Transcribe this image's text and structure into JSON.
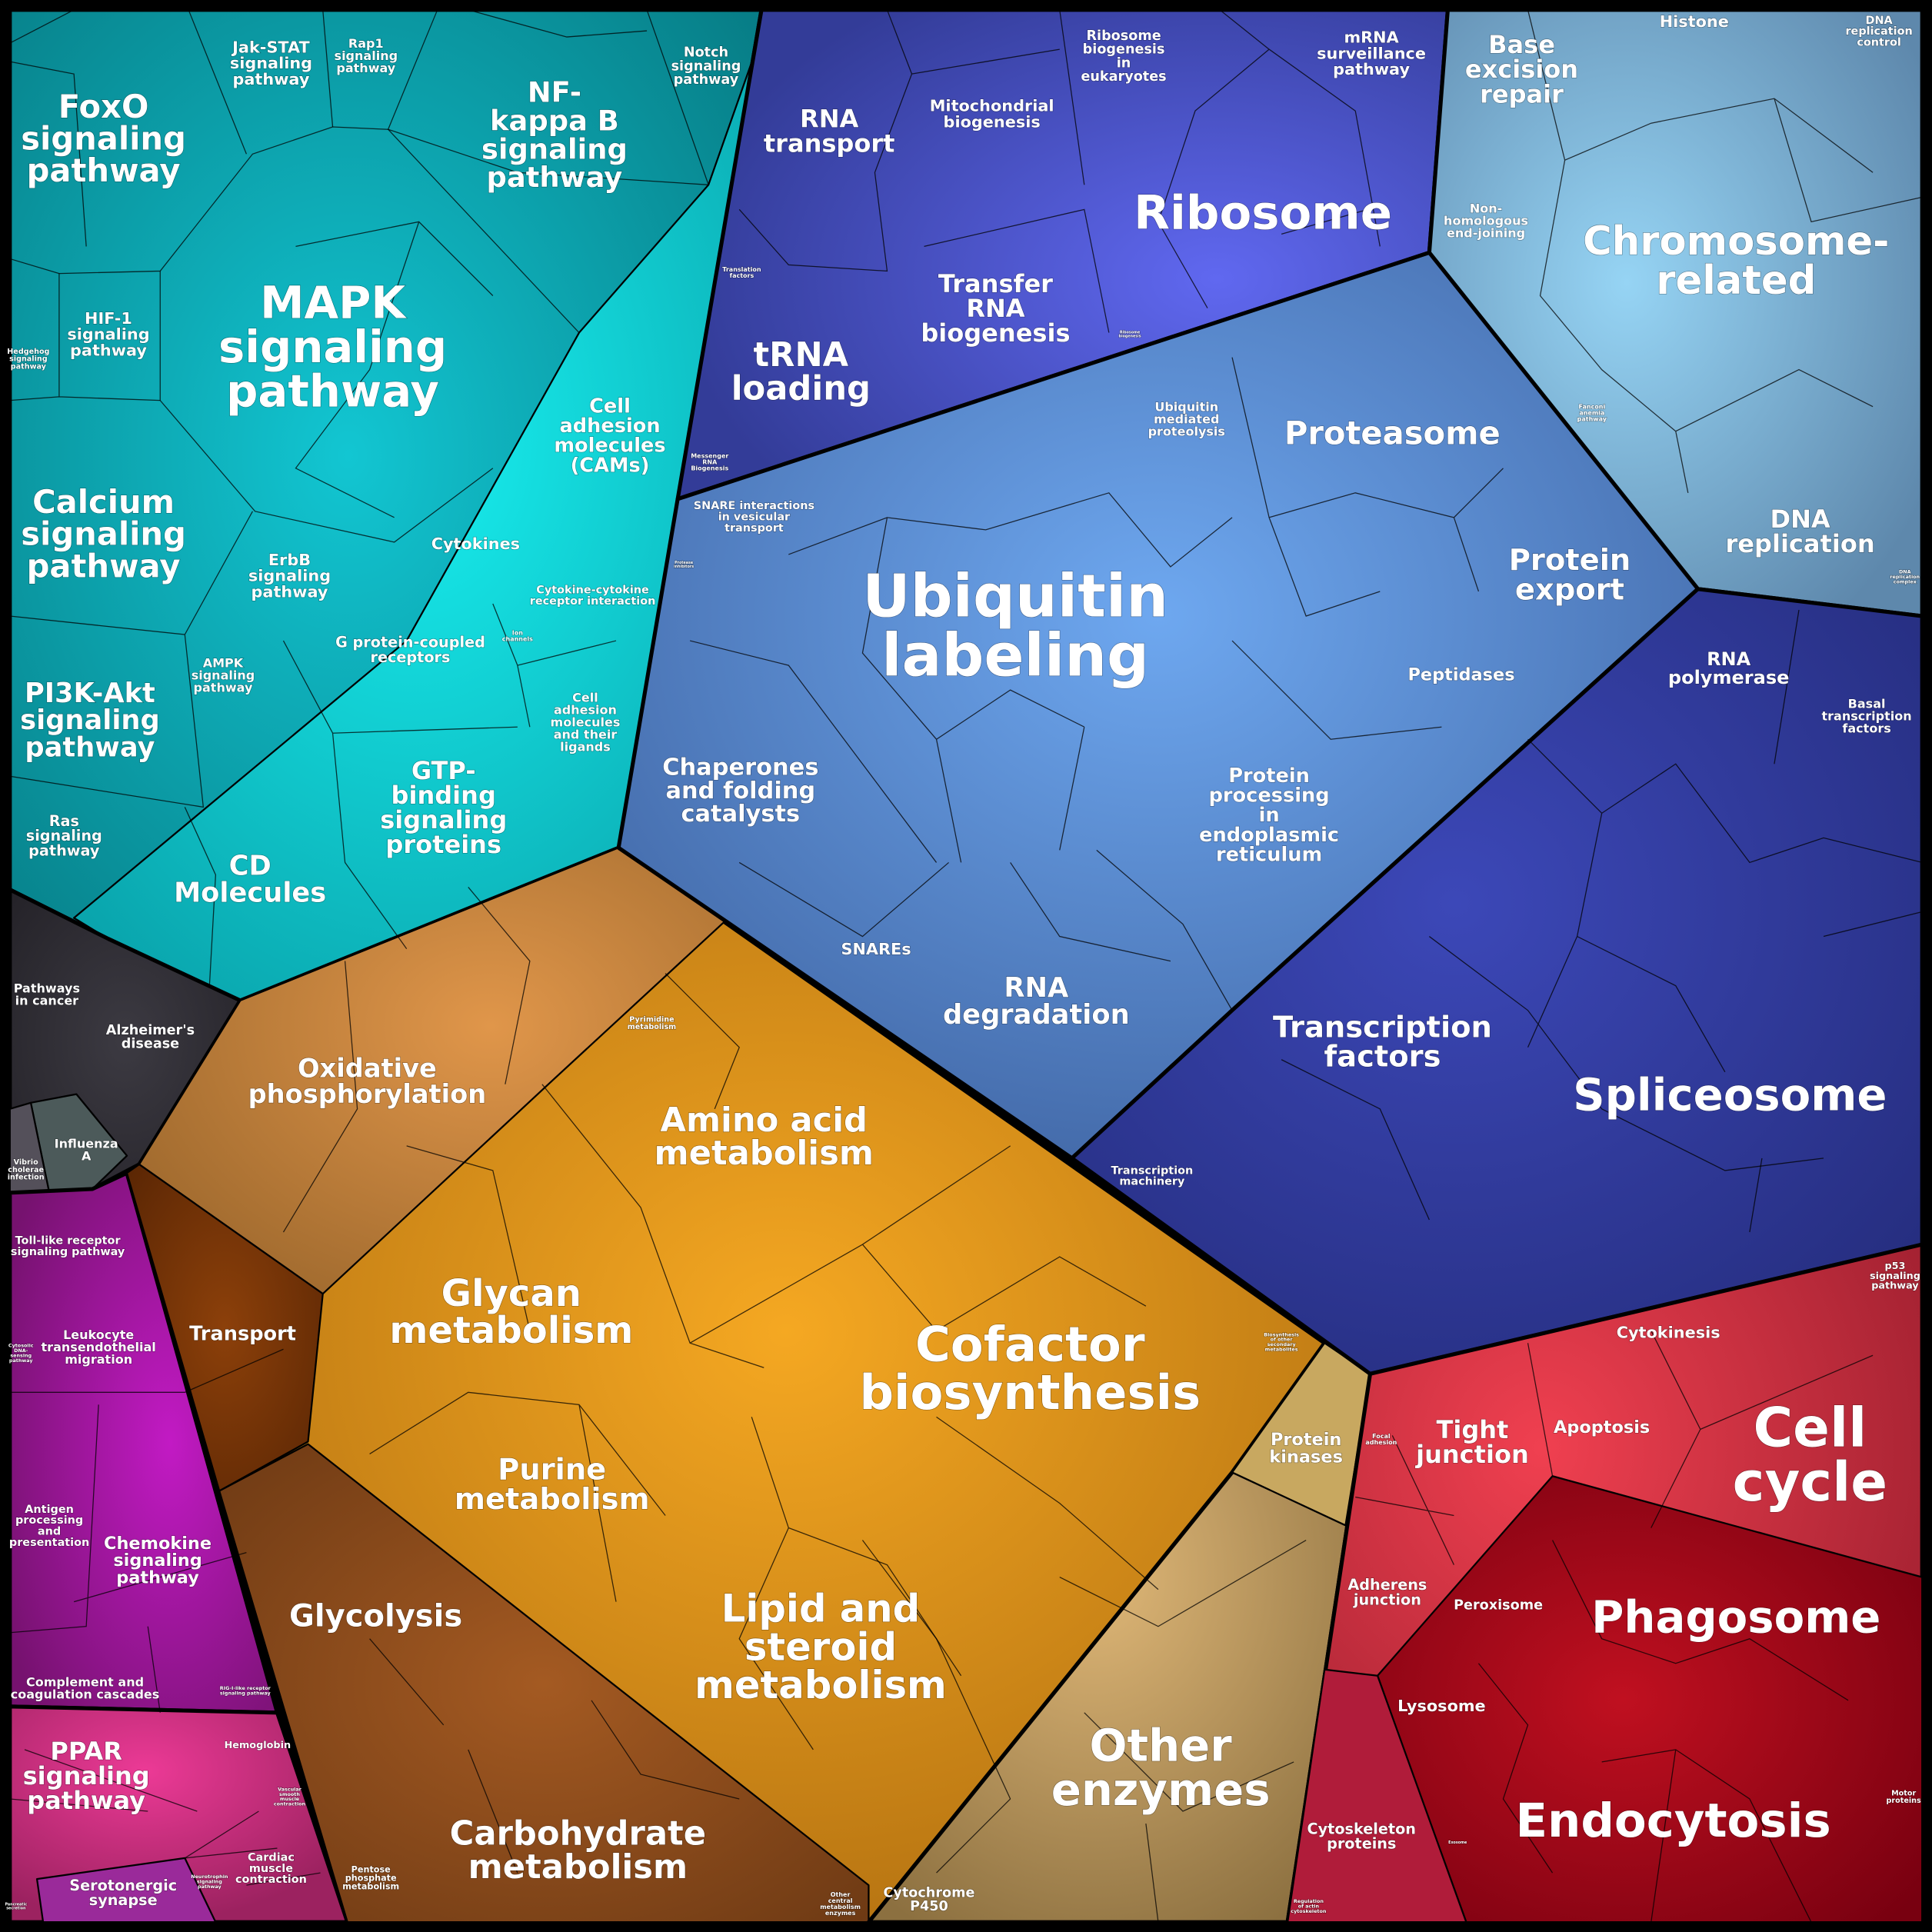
{
  "colors": {
    "signaling": "#0a939c",
    "disease": "#2c2a30",
    "immune": "#8c168f",
    "organismal": "#c03070",
    "metabolism": "#c4841c",
    "other_enzymes": "#b09058",
    "genetic_info": "#3c46aa",
    "protein_processing": "#4f80c2",
    "chromosome": "#78a8cc",
    "transcription": "#2f3a98",
    "cellular_processes": "#a81626"
  },
  "labels": [
    {
      "lines": [
        "FoxO",
        "signaling",
        "pathway"
      ]
    },
    {
      "lines": [
        "Jak-STAT",
        "signaling",
        "pathway"
      ]
    },
    {
      "lines": [
        "Rap1",
        "signaling",
        "pathway"
      ]
    },
    {
      "lines": [
        "NF-",
        "kappa B",
        "signaling",
        "pathway"
      ]
    },
    {
      "lines": [
        "Notch",
        "signaling",
        "pathway"
      ]
    },
    {
      "lines": [
        "MAPK",
        "signaling",
        "pathway"
      ]
    },
    {
      "lines": [
        "HIF-1",
        "signaling",
        "pathway"
      ]
    },
    {
      "lines": [
        "Hedgehog",
        "signaling",
        "pathway"
      ]
    },
    {
      "lines": [
        "Calcium",
        "signaling",
        "pathway"
      ]
    },
    {
      "lines": [
        "ErbB",
        "signaling",
        "pathway"
      ]
    },
    {
      "lines": [
        "AMPK",
        "signaling",
        "pathway"
      ]
    },
    {
      "lines": [
        "Cell",
        "adhesion",
        "molecules",
        "(CAMs)"
      ]
    },
    {
      "lines": [
        "Cytokines"
      ]
    },
    {
      "lines": [
        "Cytokine-cytokine",
        "receptor interaction"
      ]
    },
    {
      "lines": [
        "G protein-coupled",
        "receptors"
      ]
    },
    {
      "lines": [
        "Ion",
        "channels"
      ]
    },
    {
      "lines": [
        "Cell",
        "adhesion",
        "molecules",
        "and their",
        "ligands"
      ]
    },
    {
      "lines": [
        "GTP-",
        "binding",
        "signaling",
        "proteins"
      ]
    },
    {
      "lines": [
        "PI3K-Akt",
        "signaling",
        "pathway"
      ]
    },
    {
      "lines": [
        "Ras",
        "signaling",
        "pathway"
      ]
    },
    {
      "lines": [
        "CD",
        "Molecules"
      ]
    },
    {
      "lines": [
        "Pathways",
        "in cancer"
      ]
    },
    {
      "lines": [
        "Alzheimer's",
        "disease"
      ]
    },
    {
      "lines": [
        "Influenza",
        "A"
      ]
    },
    {
      "lines": [
        "Vibrio",
        "cholerae",
        "infection"
      ]
    },
    {
      "lines": [
        "Toll-like receptor",
        "signaling pathway"
      ]
    },
    {
      "lines": [
        "Cytosolic",
        "DNA-",
        "sensing",
        "pathway"
      ]
    },
    {
      "lines": [
        "Leukocyte",
        "transendothelial",
        "migration"
      ]
    },
    {
      "lines": [
        "Antigen",
        "processing",
        "and",
        "presentation"
      ]
    },
    {
      "lines": [
        "Chemokine",
        "signaling",
        "pathway"
      ]
    },
    {
      "lines": [
        "Complement and",
        "coagulation cascades"
      ]
    },
    {
      "lines": [
        "RIG-I-like receptor",
        "signaling pathway"
      ]
    },
    {
      "lines": [
        "PPAR",
        "signaling",
        "pathway"
      ]
    },
    {
      "lines": [
        "Hemoglobin"
      ]
    },
    {
      "lines": [
        "Vascular",
        "smooth",
        "muscle",
        "contraction"
      ]
    },
    {
      "lines": [
        "Cardiac",
        "muscle",
        "contraction"
      ]
    },
    {
      "lines": [
        "Serotonergic",
        "synapse"
      ]
    },
    {
      "lines": [
        "Neurotrophin",
        "signaling",
        "pathway"
      ]
    },
    {
      "lines": [
        "Pancreatic",
        "secretion"
      ]
    },
    {
      "lines": [
        "Oxidative",
        "phosphorylation"
      ]
    },
    {
      "lines": [
        "Pyrimidine",
        "metabolism"
      ]
    },
    {
      "lines": [
        "Amino acid",
        "metabolism"
      ]
    },
    {
      "lines": [
        "Transport"
      ]
    },
    {
      "lines": [
        "Glycan",
        "metabolism"
      ]
    },
    {
      "lines": [
        "Cofactor",
        "biosynthesis"
      ]
    },
    {
      "lines": [
        "Biosynthesis",
        "of other",
        "secondary",
        "metabolites"
      ]
    },
    {
      "lines": [
        "Purine",
        "metabolism"
      ]
    },
    {
      "lines": [
        "Glycolysis"
      ]
    },
    {
      "lines": [
        "Lipid and",
        "steroid",
        "metabolism"
      ]
    },
    {
      "lines": [
        "Carbohydrate",
        "metabolism"
      ]
    },
    {
      "lines": [
        "Pentose",
        "phosphate",
        "metabolism"
      ]
    },
    {
      "lines": [
        "Other",
        "central",
        "metabolism",
        "enzymes"
      ]
    },
    {
      "lines": [
        "Cytochrome",
        "P450"
      ]
    },
    {
      "lines": [
        "Protein",
        "kinases"
      ]
    },
    {
      "lines": [
        "Other",
        "enzymes"
      ]
    },
    {
      "lines": [
        "RNA",
        "transport"
      ]
    },
    {
      "lines": [
        "Mitochondrial",
        "biogenesis"
      ]
    },
    {
      "lines": [
        "Ribosome",
        "biogenesis",
        "in",
        "eukaryotes"
      ]
    },
    {
      "lines": [
        "mRNA",
        "surveillance",
        "pathway"
      ]
    },
    {
      "lines": [
        "Ribosome"
      ]
    },
    {
      "lines": [
        "Translation",
        "factors"
      ]
    },
    {
      "lines": [
        "Transfer",
        "RNA",
        "biogenesis"
      ]
    },
    {
      "lines": [
        "Ribosome",
        "biogenesis"
      ]
    },
    {
      "lines": [
        "tRNA",
        "loading"
      ]
    },
    {
      "lines": [
        "Messenger",
        "RNA",
        "Biogenesis"
      ]
    },
    {
      "lines": [
        "Base",
        "excision",
        "repair"
      ]
    },
    {
      "lines": [
        "Histone"
      ]
    },
    {
      "lines": [
        "DNA",
        "replication",
        "control"
      ]
    },
    {
      "lines": [
        "Non-",
        "homologous",
        "end-joining"
      ]
    },
    {
      "lines": [
        "Chromosome-",
        "related"
      ]
    },
    {
      "lines": [
        "Fanconi",
        "anemia",
        "pathway"
      ]
    },
    {
      "lines": [
        "Ubiquitin",
        "mediated",
        "proteolysis"
      ]
    },
    {
      "lines": [
        "Proteasome"
      ]
    },
    {
      "lines": [
        "SNARE interactions",
        "in vesicular",
        "transport"
      ]
    },
    {
      "lines": [
        "Protease",
        "inhibitors"
      ]
    },
    {
      "lines": [
        "DNA",
        "replication"
      ]
    },
    {
      "lines": [
        "DNA",
        "replication",
        "complex"
      ]
    },
    {
      "lines": [
        "Ubiquitin",
        "labeling"
      ]
    },
    {
      "lines": [
        "Protein",
        "export"
      ]
    },
    {
      "lines": [
        "Peptidases"
      ]
    },
    {
      "lines": [
        "RNA",
        "polymerase"
      ]
    },
    {
      "lines": [
        "Basal",
        "transcription",
        "factors"
      ]
    },
    {
      "lines": [
        "Chaperones",
        "and folding",
        "catalysts"
      ]
    },
    {
      "lines": [
        "Protein",
        "processing",
        "in",
        "endoplasmic",
        "reticulum"
      ]
    },
    {
      "lines": [
        "SNAREs"
      ]
    },
    {
      "lines": [
        "RNA",
        "degradation"
      ]
    },
    {
      "lines": [
        "Transcription",
        "factors"
      ]
    },
    {
      "lines": [
        "Transcription",
        "machinery"
      ]
    },
    {
      "lines": [
        "Spliceosome"
      ]
    },
    {
      "lines": [
        "p53",
        "signaling",
        "pathway"
      ]
    },
    {
      "lines": [
        "Cytokinesis"
      ]
    },
    {
      "lines": [
        "Cell",
        "cycle"
      ]
    },
    {
      "lines": [
        "Tight",
        "junction"
      ]
    },
    {
      "lines": [
        "Focal",
        "adhesion"
      ]
    },
    {
      "lines": [
        "Apoptosis"
      ]
    },
    {
      "lines": [
        "Adherens",
        "junction"
      ]
    },
    {
      "lines": [
        "Peroxisome"
      ]
    },
    {
      "lines": [
        "Phagosome"
      ]
    },
    {
      "lines": [
        "Lysosome"
      ]
    },
    {
      "lines": [
        "Endocytosis"
      ]
    },
    {
      "lines": [
        "Exosome"
      ]
    },
    {
      "lines": [
        "Cytoskeleton",
        "proteins"
      ]
    },
    {
      "lines": [
        "Motor",
        "proteins"
      ]
    },
    {
      "lines": [
        "Regulation",
        "of actin",
        "cytoskeleton"
      ]
    }
  ]
}
